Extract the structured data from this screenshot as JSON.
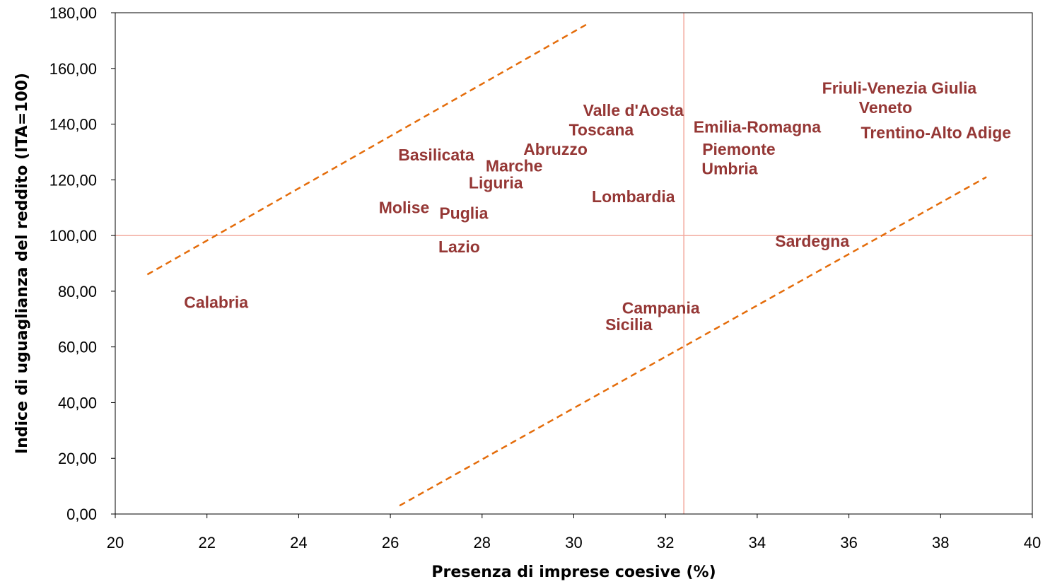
{
  "chart_data": {
    "type": "scatter",
    "xlabel": "Presenza di imprese coesive (%)",
    "ylabel": "Indice di uguaglianza del reddito (ITA=100)",
    "xlim": [
      20,
      40
    ],
    "ylim": [
      0,
      180
    ],
    "x_ticks": [
      "20",
      "22",
      "24",
      "26",
      "28",
      "30",
      "32",
      "34",
      "36",
      "38",
      "40"
    ],
    "y_ticks": [
      "0,00",
      "20,00",
      "40,00",
      "60,00",
      "80,00",
      "100,00",
      "120,00",
      "140,00",
      "160,00",
      "180,00"
    ],
    "grid": false,
    "label_color": "#953735",
    "reference_lines": {
      "color": "#f2a99e",
      "vertical_x": 32.4,
      "horizontal_y": 100
    },
    "band_lines": {
      "color": "#e46c0a",
      "style": "dashed",
      "lines": [
        {
          "x1": 20.7,
          "y1": 86,
          "x2": 30.3,
          "y2": 176
        },
        {
          "x1": 26.2,
          "y1": 3,
          "x2": 39.0,
          "y2": 121
        }
      ]
    },
    "points": [
      {
        "label": "Calabria",
        "x": 22.2,
        "y": 76
      },
      {
        "label": "Molise",
        "x": 26.3,
        "y": 110
      },
      {
        "label": "Basilicata",
        "x": 27.0,
        "y": 129
      },
      {
        "label": "Lazio",
        "x": 27.5,
        "y": 96
      },
      {
        "label": "Puglia",
        "x": 27.6,
        "y": 108
      },
      {
        "label": "Liguria",
        "x": 28.3,
        "y": 119
      },
      {
        "label": "Marche",
        "x": 28.7,
        "y": 125
      },
      {
        "label": "Abruzzo",
        "x": 29.6,
        "y": 131
      },
      {
        "label": "Toscana",
        "x": 30.6,
        "y": 138
      },
      {
        "label": "Valle d'Aosta",
        "x": 31.3,
        "y": 145
      },
      {
        "label": "Lombardia",
        "x": 31.3,
        "y": 114
      },
      {
        "label": "Campania",
        "x": 31.9,
        "y": 74
      },
      {
        "label": "Sicilia",
        "x": 31.2,
        "y": 68
      },
      {
        "label": "Emilia-Romagna",
        "x": 34.0,
        "y": 139
      },
      {
        "label": "Piemonte",
        "x": 33.6,
        "y": 131
      },
      {
        "label": "Umbria",
        "x": 33.4,
        "y": 124
      },
      {
        "label": "Sardegna",
        "x": 35.2,
        "y": 98
      },
      {
        "label": "Friuli-Venezia Giulia",
        "x": 37.1,
        "y": 153
      },
      {
        "label": "Veneto",
        "x": 36.8,
        "y": 146
      },
      {
        "label": "Trentino-Alto Adige",
        "x": 37.9,
        "y": 137
      }
    ]
  }
}
